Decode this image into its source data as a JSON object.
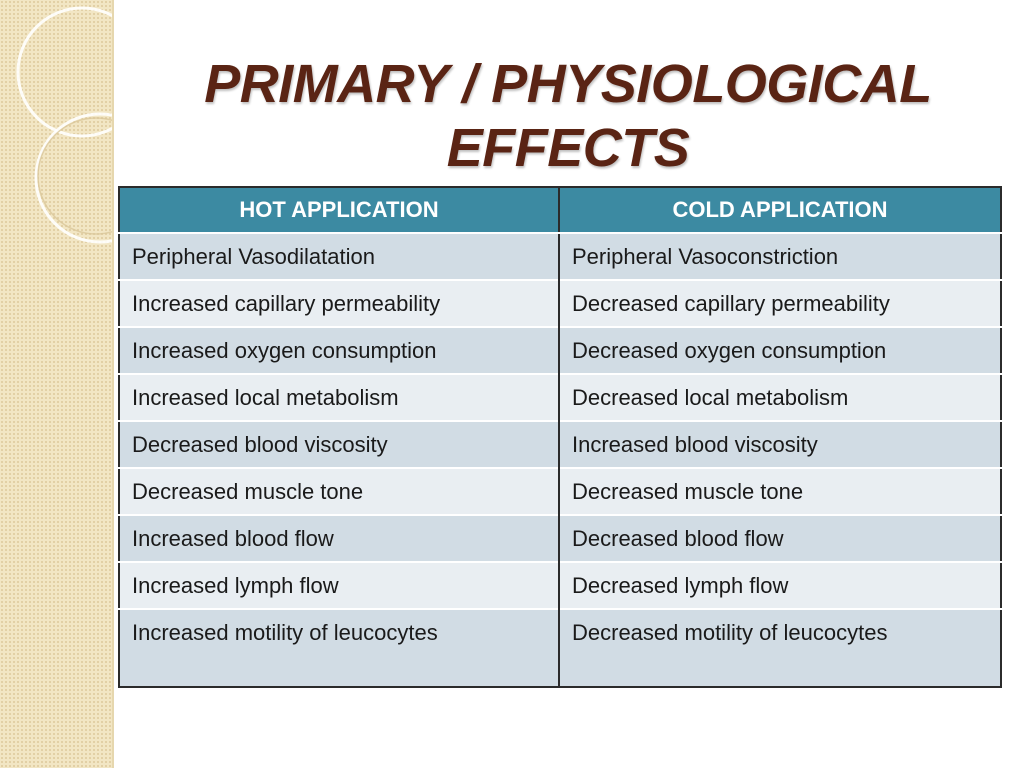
{
  "slide": {
    "title_lines": [
      "PRIMARY / PHYSIOLOGICAL",
      "EFFECTS"
    ],
    "colors": {
      "title": "#5a2414",
      "header_bg": "#3c8aa2",
      "row_dark": "#d1dce4",
      "row_light": "#e9eef2",
      "side_panel": "#f2e6c4"
    }
  },
  "table": {
    "headers": [
      "HOT APPLICATION",
      "COLD APPLICATION"
    ],
    "rows": [
      [
        "Peripheral Vasodilatation",
        "Peripheral Vasoconstriction"
      ],
      [
        "Increased capillary permeability",
        "Decreased capillary permeability"
      ],
      [
        "Increased oxygen consumption",
        "Decreased oxygen consumption"
      ],
      [
        "Increased local metabolism",
        "Decreased local metabolism"
      ],
      [
        "Decreased blood viscosity",
        "Increased blood viscosity"
      ],
      [
        "Decreased muscle tone",
        "Decreased muscle tone"
      ],
      [
        "Increased blood flow",
        "Decreased blood flow"
      ],
      [
        "Increased lymph flow",
        "Decreased lymph flow"
      ],
      [
        "Increased motility of leucocytes",
        "Decreased motility of leucocytes"
      ]
    ]
  }
}
